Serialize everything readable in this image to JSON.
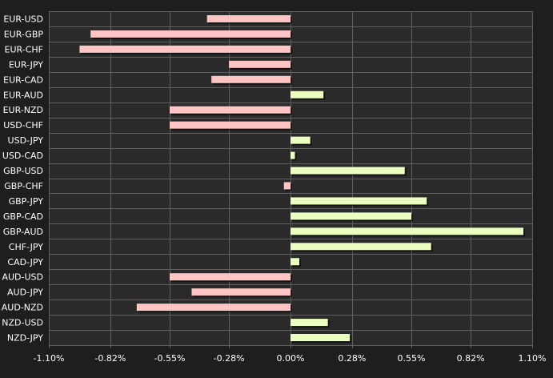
{
  "chart_data": {
    "type": "bar",
    "orientation": "horizontal",
    "categories": [
      "EUR-USD",
      "EUR-GBP",
      "EUR-CHF",
      "EUR-JPY",
      "EUR-CAD",
      "EUR-AUD",
      "EUR-NZD",
      "USD-CHF",
      "USD-JPY",
      "USD-CAD",
      "GBP-USD",
      "GBP-CHF",
      "GBP-JPY",
      "GBP-CAD",
      "GBP-AUD",
      "CHF-JPY",
      "CAD-JPY",
      "AUD-USD",
      "AUD-JPY",
      "AUD-NZD",
      "NZD-USD",
      "NZD-JPY"
    ],
    "values": [
      -0.38,
      -0.91,
      -0.96,
      -0.28,
      -0.36,
      0.15,
      -0.55,
      -0.55,
      0.09,
      0.02,
      0.52,
      -0.03,
      0.62,
      0.55,
      1.06,
      0.64,
      0.04,
      -0.55,
      -0.45,
      -0.7,
      0.17,
      0.27
    ],
    "xlim": [
      -1.1,
      1.1
    ],
    "ticks": [
      "-1.10%",
      "-0.82%",
      "-0.55%",
      "-0.28%",
      "0.00%",
      "0.28%",
      "0.55%",
      "0.82%",
      "1.10%"
    ],
    "tick_values": [
      -1.1,
      -0.82,
      -0.55,
      -0.28,
      0.0,
      0.28,
      0.55,
      0.82,
      1.1
    ],
    "grid": true,
    "colors": {
      "positive": "#eaffc0",
      "negative": "#ffc4c4",
      "background": "#1e1e1e",
      "plot": "#2a2a2a",
      "grid": "#606060",
      "text": "#ffffff"
    }
  }
}
